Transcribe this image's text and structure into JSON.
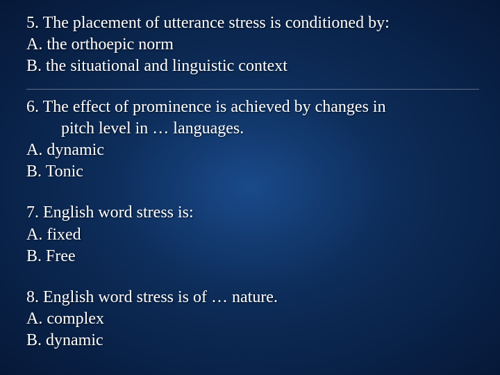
{
  "text_color": "#ffffff",
  "font_family": "Times New Roman",
  "font_size_pt": 24,
  "background_gradient": {
    "center": "#1a4a8a",
    "mid": "#0d2d5a",
    "edge": "#061838"
  },
  "divider_color": "rgba(255,255,255,0.35)",
  "questions": [
    {
      "number": "5.",
      "prompt": "The placement of utterance stress is conditioned by:",
      "options": [
        {
          "label": "A.",
          "text": "the orthoepic norm"
        },
        {
          "label": "B.",
          "text": "the situational and linguistic context"
        }
      ]
    },
    {
      "number": "6.",
      "prompt_line1": "The effect of prominence is achieved by changes in",
      "prompt_line2": "pitch level in … languages.",
      "options": [
        {
          "label": "A.",
          "text": "dynamic"
        },
        {
          "label": "B.",
          "text": "Tonic"
        }
      ]
    },
    {
      "number": "7.",
      "prompt": "English word stress is:",
      "options": [
        {
          "label": "A.",
          "text": "fixed"
        },
        {
          "label": "B.",
          "text": "Free"
        }
      ]
    },
    {
      "number": "8.",
      "prompt": "English word stress is of … nature.",
      "options": [
        {
          "label": "A.",
          "text": "complex"
        },
        {
          "label": "B.",
          "text": "dynamic"
        }
      ]
    }
  ]
}
